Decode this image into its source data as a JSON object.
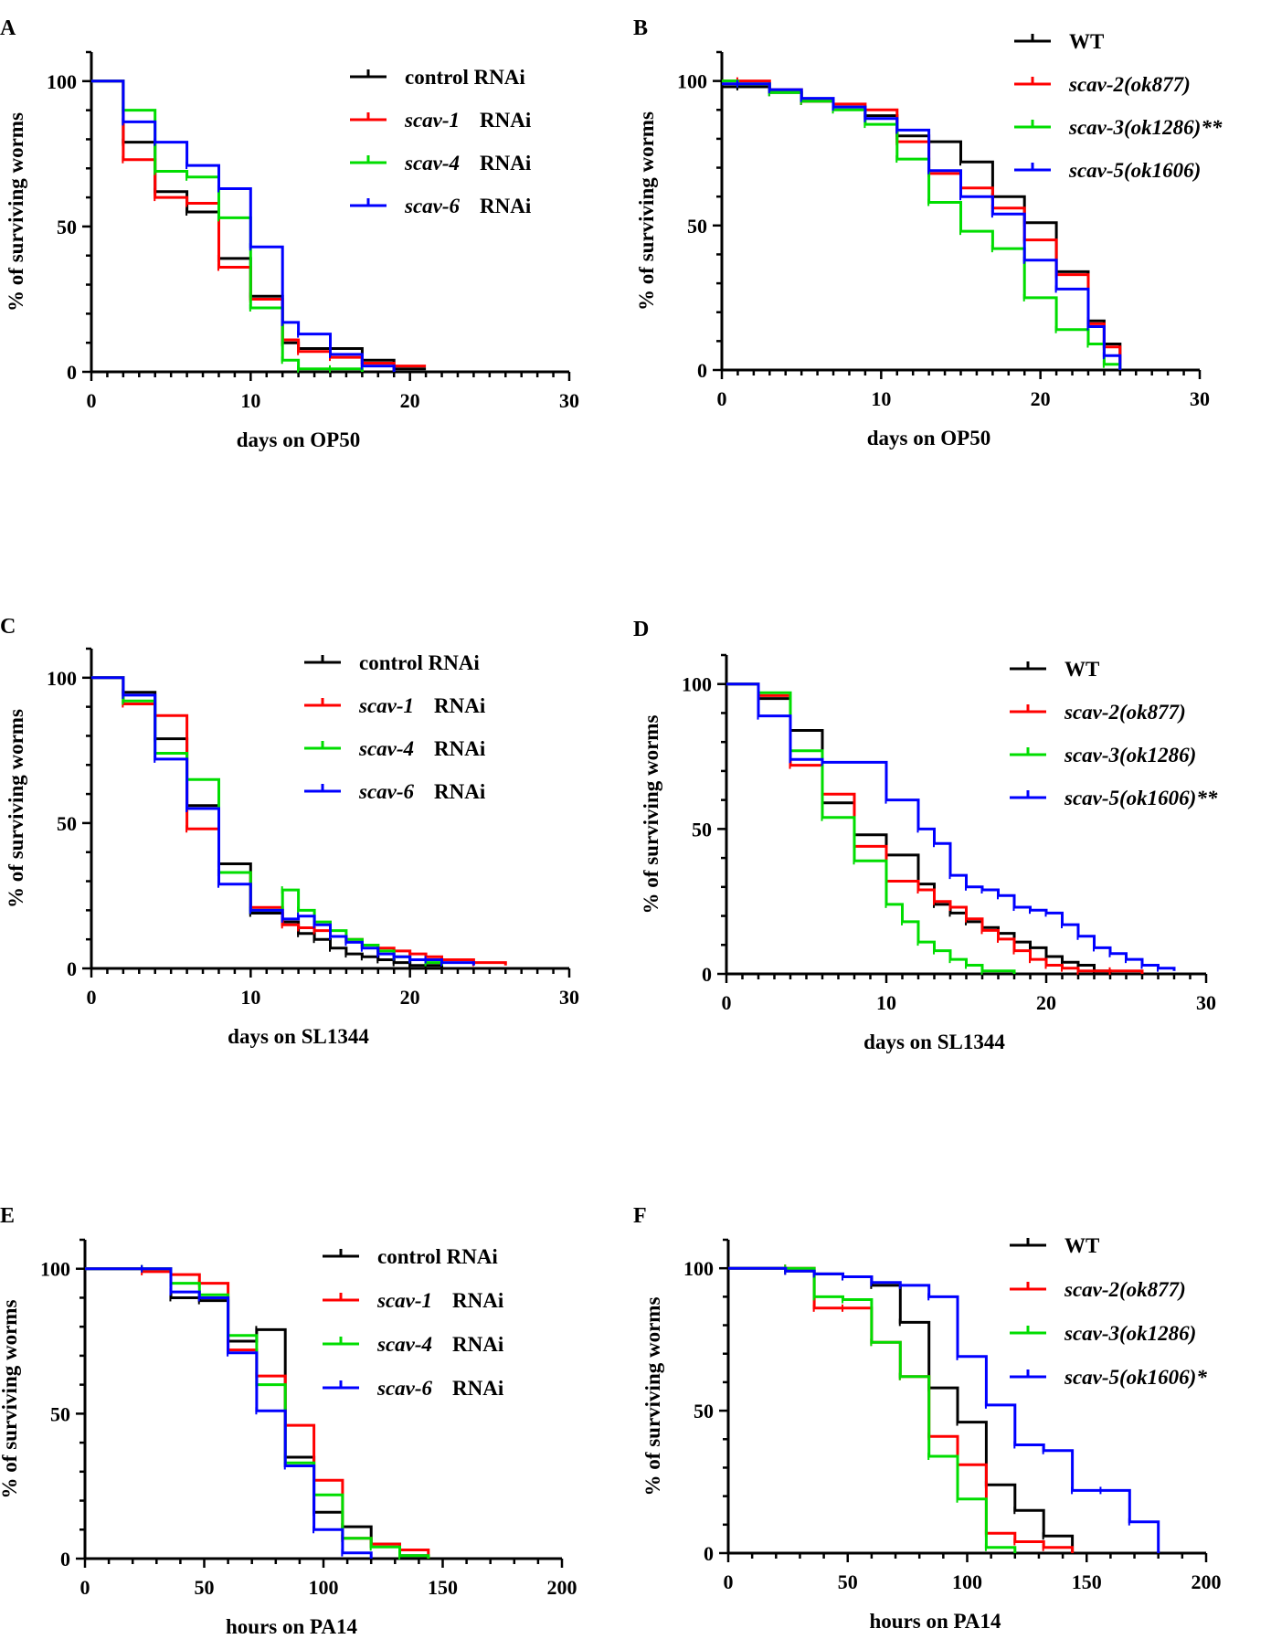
{
  "chart_data": [
    {
      "panel": "A",
      "type": "line",
      "xlabel": "days on OP50",
      "ylabel": "% of surviving worms",
      "xlim": [
        0,
        30
      ],
      "ylim": [
        0,
        110
      ],
      "xticks": [
        "0",
        "10",
        "20",
        "30"
      ],
      "yticks": [
        "0",
        "50",
        "100"
      ],
      "legend_position": "top-right",
      "series": [
        {
          "name": "control RNAi",
          "gene": "",
          "suffix": "control RNAi",
          "color": "#000000",
          "x": [
            0,
            2,
            4,
            6,
            8,
            10,
            12,
            13,
            15,
            17,
            19,
            21
          ],
          "y": [
            100,
            79,
            62,
            55,
            39,
            26,
            10,
            8,
            8,
            4,
            1,
            1
          ]
        },
        {
          "name": "scav-1 RNAi",
          "gene": "scav-1",
          "suffix": "RNAi",
          "color": "#ff0000",
          "x": [
            0,
            2,
            4,
            6,
            8,
            10,
            12,
            13,
            15,
            17,
            19,
            21
          ],
          "y": [
            100,
            73,
            60,
            58,
            36,
            25,
            11,
            7,
            5,
            3,
            2,
            2
          ]
        },
        {
          "name": "scav-4 RNAi",
          "gene": "scav-4",
          "suffix": "RNAi",
          "color": "#00dd00",
          "x": [
            0,
            2,
            4,
            6,
            8,
            10,
            12,
            13,
            15,
            17
          ],
          "y": [
            100,
            90,
            69,
            67,
            53,
            22,
            4,
            1,
            1,
            0
          ]
        },
        {
          "name": "scav-6 RNAi",
          "gene": "scav-6",
          "suffix": "RNAi",
          "color": "#0000ff",
          "x": [
            0,
            2,
            4,
            6,
            8,
            10,
            12,
            13,
            15,
            17,
            19
          ],
          "y": [
            100,
            86,
            79,
            71,
            63,
            43,
            17,
            13,
            6,
            2,
            0
          ]
        }
      ]
    },
    {
      "panel": "B",
      "type": "line",
      "xlabel": "days on OP50",
      "ylabel": "% of surviving worms",
      "xlim": [
        0,
        30
      ],
      "ylim": [
        0,
        110
      ],
      "xticks": [
        "0",
        "10",
        "20",
        "30"
      ],
      "yticks": [
        "0",
        "50",
        "100"
      ],
      "legend_position": "top-right",
      "series": [
        {
          "name": "WT",
          "gene": "",
          "suffix": "WT",
          "color": "#000000",
          "x": [
            0,
            1,
            3,
            5,
            7,
            9,
            11,
            13,
            15,
            17,
            19,
            21,
            23,
            24,
            25
          ],
          "y": [
            98,
            98,
            96,
            93,
            91,
            88,
            81,
            79,
            72,
            60,
            51,
            34,
            17,
            9,
            0
          ]
        },
        {
          "name": "scav-2(ok877)",
          "gene": "scav-2(ok877)",
          "suffix": "",
          "color": "#ff0000",
          "x": [
            0,
            1,
            3,
            5,
            7,
            9,
            11,
            13,
            15,
            17,
            19,
            21,
            23,
            24,
            25
          ],
          "y": [
            100,
            100,
            97,
            93,
            92,
            90,
            79,
            68,
            63,
            56,
            45,
            33,
            16,
            8,
            0
          ]
        },
        {
          "name": "scav-3(ok1286)**",
          "gene": "scav-3(ok1286)**",
          "suffix": "",
          "color": "#00dd00",
          "x": [
            0,
            1,
            3,
            5,
            7,
            9,
            11,
            13,
            15,
            17,
            19,
            21,
            23,
            24,
            25
          ],
          "y": [
            100,
            99,
            96,
            93,
            90,
            85,
            73,
            58,
            48,
            42,
            25,
            14,
            9,
            2,
            0
          ]
        },
        {
          "name": "scav-5(ok1606)",
          "gene": "scav-5(ok1606)",
          "suffix": "",
          "color": "#0000ff",
          "x": [
            0,
            1,
            3,
            5,
            7,
            9,
            11,
            13,
            15,
            17,
            19,
            21,
            23,
            24,
            25
          ],
          "y": [
            99,
            99,
            97,
            94,
            91,
            87,
            83,
            69,
            60,
            54,
            38,
            28,
            15,
            5,
            0
          ]
        }
      ]
    },
    {
      "panel": "C",
      "type": "line",
      "xlabel": "days on SL1344",
      "ylabel": "% of surviving worms",
      "xlim": [
        0,
        30
      ],
      "ylim": [
        0,
        110
      ],
      "xticks": [
        "0",
        "10",
        "20",
        "30"
      ],
      "yticks": [
        "0",
        "50",
        "100"
      ],
      "legend_position": "top-right",
      "series": [
        {
          "name": "control RNAi",
          "gene": "",
          "suffix": "control RNAi",
          "color": "#000000",
          "x": [
            0,
            2,
            4,
            6,
            8,
            10,
            12,
            13,
            14,
            15,
            16,
            17,
            18,
            19,
            20,
            21,
            22
          ],
          "y": [
            100,
            95,
            79,
            56,
            36,
            19,
            16,
            12,
            10,
            7,
            5,
            4,
            3,
            2,
            1,
            1,
            0
          ]
        },
        {
          "name": "scav-1 RNAi",
          "gene": "scav-1",
          "suffix": "RNAi",
          "color": "#ff0000",
          "x": [
            0,
            2,
            4,
            6,
            8,
            10,
            12,
            13,
            14,
            15,
            16,
            17,
            18,
            19,
            20,
            21,
            22,
            24,
            26
          ],
          "y": [
            100,
            91,
            87,
            48,
            33,
            21,
            15,
            14,
            13,
            11,
            10,
            8,
            7,
            6,
            5,
            4,
            3,
            2,
            1
          ]
        },
        {
          "name": "scav-4 RNAi",
          "gene": "scav-4",
          "suffix": "RNAi",
          "color": "#00dd00",
          "x": [
            0,
            2,
            4,
            6,
            8,
            10,
            12,
            13,
            14,
            15,
            16,
            17,
            18,
            19,
            20,
            21,
            22
          ],
          "y": [
            100,
            92,
            74,
            65,
            33,
            20,
            27,
            20,
            16,
            13,
            10,
            8,
            6,
            4,
            3,
            2,
            1
          ]
        },
        {
          "name": "scav-6 RNAi",
          "gene": "scav-6",
          "suffix": "RNAi",
          "color": "#0000ff",
          "x": [
            0,
            2,
            4,
            6,
            8,
            10,
            12,
            13,
            14,
            15,
            16,
            17,
            18,
            19,
            20,
            21,
            22,
            24
          ],
          "y": [
            100,
            94,
            72,
            55,
            29,
            20,
            17,
            18,
            15,
            11,
            9,
            7,
            5,
            4,
            3,
            3,
            2,
            1
          ]
        }
      ]
    },
    {
      "panel": "D",
      "type": "line",
      "xlabel": "days on SL1344",
      "ylabel": "% of surviving worms",
      "xlim": [
        0,
        30
      ],
      "ylim": [
        0,
        110
      ],
      "xticks": [
        "0",
        "10",
        "20",
        "30"
      ],
      "yticks": [
        "0",
        "50",
        "100"
      ],
      "legend_position": "top-right",
      "series": [
        {
          "name": "WT",
          "gene": "",
          "suffix": "WT",
          "color": "#000000",
          "x": [
            0,
            2,
            4,
            6,
            8,
            10,
            12,
            13,
            14,
            15,
            16,
            17,
            18,
            19,
            20,
            21,
            22,
            23,
            24
          ],
          "y": [
            100,
            95,
            84,
            59,
            48,
            41,
            31,
            24,
            21,
            18,
            16,
            14,
            11,
            9,
            6,
            4,
            3,
            1,
            0
          ]
        },
        {
          "name": "scav-2(ok877)",
          "gene": "scav-2(ok877)",
          "suffix": "",
          "color": "#ff0000",
          "x": [
            0,
            2,
            4,
            6,
            8,
            10,
            12,
            13,
            14,
            15,
            16,
            17,
            18,
            19,
            20,
            21,
            22,
            24,
            26
          ],
          "y": [
            100,
            96,
            72,
            62,
            44,
            32,
            29,
            25,
            23,
            19,
            15,
            12,
            8,
            5,
            3,
            2,
            1,
            1,
            0
          ]
        },
        {
          "name": "scav-3(ok1286)",
          "gene": "scav-3(ok1286)",
          "suffix": "",
          "color": "#00dd00",
          "x": [
            0,
            2,
            4,
            6,
            8,
            10,
            11,
            12,
            13,
            14,
            15,
            16,
            18
          ],
          "y": [
            100,
            97,
            77,
            54,
            39,
            24,
            18,
            11,
            8,
            5,
            3,
            1,
            0
          ]
        },
        {
          "name": "scav-5(ok1606)**",
          "gene": "scav-5(ok1606)**",
          "suffix": "",
          "color": "#0000ff",
          "x": [
            0,
            2,
            4,
            6,
            10,
            12,
            13,
            14,
            15,
            16,
            17,
            18,
            19,
            20,
            21,
            22,
            23,
            24,
            25,
            26,
            27,
            28
          ],
          "y": [
            100,
            89,
            74,
            73,
            60,
            50,
            45,
            34,
            30,
            29,
            27,
            23,
            22,
            21,
            17,
            13,
            9,
            7,
            5,
            3,
            2,
            1
          ]
        }
      ]
    },
    {
      "panel": "E",
      "type": "line",
      "xlabel": "hours on PA14",
      "ylabel": "% of surviving worms",
      "xlim": [
        0,
        200
      ],
      "ylim": [
        0,
        110
      ],
      "xticks": [
        "0",
        "50",
        "100",
        "150",
        "200"
      ],
      "yticks": [
        "0",
        "50",
        "100"
      ],
      "legend_position": "top-right",
      "series": [
        {
          "name": "control RNAi",
          "gene": "",
          "suffix": "control RNAi",
          "color": "#000000",
          "x": [
            0,
            24,
            36,
            48,
            60,
            72,
            84,
            96,
            108,
            120,
            132,
            144
          ],
          "y": [
            100,
            100,
            90,
            89,
            75,
            79,
            35,
            16,
            11,
            5,
            1,
            0
          ]
        },
        {
          "name": "scav-1 RNAi",
          "gene": "scav-1",
          "suffix": "RNAi",
          "color": "#ff0000",
          "x": [
            0,
            24,
            36,
            48,
            60,
            72,
            84,
            96,
            108,
            120,
            132,
            144
          ],
          "y": [
            100,
            99,
            98,
            95,
            72,
            63,
            46,
            27,
            7,
            5,
            3,
            0
          ]
        },
        {
          "name": "scav-4 RNAi",
          "gene": "scav-4",
          "suffix": "RNAi",
          "color": "#00dd00",
          "x": [
            0,
            24,
            36,
            48,
            60,
            72,
            84,
            96,
            108,
            120,
            132,
            144
          ],
          "y": [
            100,
            100,
            95,
            91,
            77,
            60,
            33,
            22,
            7,
            4,
            1,
            0
          ]
        },
        {
          "name": "scav-6 RNAi",
          "gene": "scav-6",
          "suffix": "RNAi",
          "color": "#0000ff",
          "x": [
            0,
            24,
            36,
            48,
            60,
            72,
            84,
            96,
            108,
            120
          ],
          "y": [
            100,
            100,
            92,
            90,
            71,
            51,
            32,
            10,
            2,
            0
          ]
        }
      ]
    },
    {
      "panel": "F",
      "type": "line",
      "xlabel": "hours on PA14",
      "ylabel": "% of surviving worms",
      "xlim": [
        0,
        200
      ],
      "ylim": [
        0,
        110
      ],
      "xticks": [
        "0",
        "50",
        "100",
        "150",
        "200"
      ],
      "yticks": [
        "0",
        "50",
        "100"
      ],
      "legend_position": "top-right",
      "series": [
        {
          "name": "WT",
          "gene": "",
          "suffix": "WT",
          "color": "#000000",
          "x": [
            0,
            24,
            36,
            48,
            60,
            72,
            84,
            96,
            108,
            120,
            132,
            144
          ],
          "y": [
            100,
            99,
            98,
            97,
            94,
            81,
            58,
            46,
            24,
            15,
            6,
            0
          ]
        },
        {
          "name": "scav-2(ok877)",
          "gene": "scav-2(ok877)",
          "suffix": "",
          "color": "#ff0000",
          "x": [
            0,
            24,
            36,
            48,
            60,
            72,
            84,
            96,
            108,
            120,
            132,
            144
          ],
          "y": [
            100,
            100,
            86,
            86,
            74,
            62,
            41,
            31,
            7,
            4,
            2,
            0
          ]
        },
        {
          "name": "scav-3(ok1286)",
          "gene": "scav-3(ok1286)",
          "suffix": "",
          "color": "#00dd00",
          "x": [
            0,
            24,
            36,
            48,
            60,
            72,
            84,
            96,
            108,
            120
          ],
          "y": [
            100,
            100,
            90,
            89,
            74,
            62,
            34,
            19,
            2,
            0
          ]
        },
        {
          "name": "scav-5(ok1606)*",
          "gene": "scav-5(ok1606)*",
          "suffix": "",
          "color": "#0000ff",
          "x": [
            0,
            24,
            36,
            48,
            60,
            72,
            84,
            96,
            108,
            120,
            132,
            144,
            156,
            168,
            180
          ],
          "y": [
            100,
            99,
            98,
            97,
            95,
            94,
            90,
            69,
            52,
            38,
            36,
            22,
            22,
            11,
            0
          ]
        }
      ]
    }
  ]
}
